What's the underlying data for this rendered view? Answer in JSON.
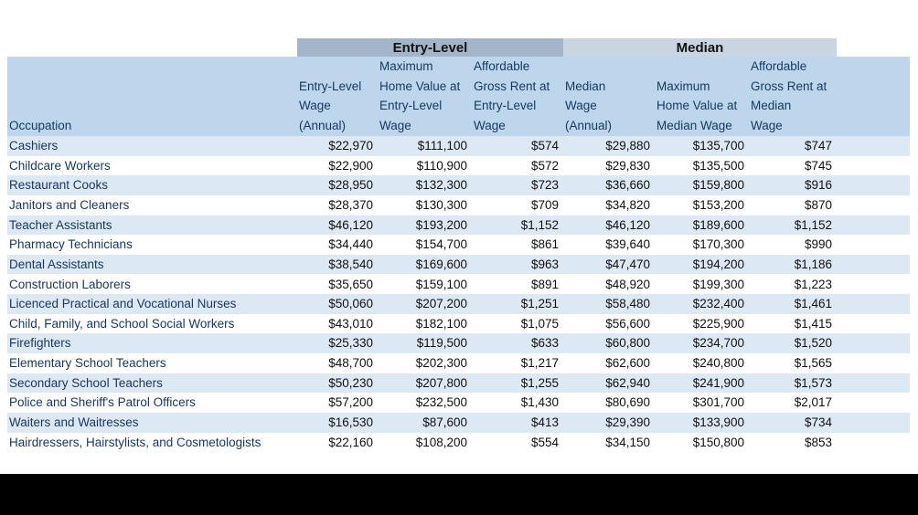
{
  "colors": {
    "entry_band": "#a3b5c9",
    "median_band": "#c9d5e1",
    "header_bg": "#bdd6ec",
    "row_alt_bg": "#dce8f4",
    "occupation_text": "#17375e",
    "value_text": "#101010",
    "footer_bar": "#000000"
  },
  "table": {
    "header_lines": [
      "Occupation",
      "Entry-Level\nWage\n(Annual)",
      "Maximum\nHome Value at\nEntry-Level\nWage",
      "Affordable\nGross Rent at\nEntry-Level\nWage",
      "Median\nWage\n(Annual)",
      "Maximum\nHome Value at\nMedian Wage",
      "Affordable\nGross Rent at\nMedian\nWage"
    ]
  },
  "chart_data": {
    "type": "table",
    "group_headers": [
      "Entry-Level",
      "Median"
    ],
    "columns": [
      "Occupation",
      "Entry-Level Wage (Annual)",
      "Maximum Home Value at Entry-Level Wage",
      "Affordable Gross Rent at Entry-Level Wage",
      "Median Wage (Annual)",
      "Maximum Home Value at Median Wage",
      "Affordable Gross Rent at Median Wage"
    ],
    "rows": [
      [
        "Cashiers",
        "$22,970",
        "$111,100",
        "$574",
        "$29,880",
        "$135,700",
        "$747"
      ],
      [
        "Childcare Workers",
        "$22,900",
        "$110,900",
        "$572",
        "$29,830",
        "$135,500",
        "$745"
      ],
      [
        "Restaurant Cooks",
        "$28,950",
        "$132,300",
        "$723",
        "$36,660",
        "$159,800",
        "$916"
      ],
      [
        "Janitors and Cleaners",
        "$28,370",
        "$130,300",
        "$709",
        "$34,820",
        "$153,200",
        "$870"
      ],
      [
        "Teacher Assistants",
        "$46,120",
        "$193,200",
        "$1,152",
        "$46,120",
        "$189,600",
        "$1,152"
      ],
      [
        "Pharmacy Technicians",
        "$34,440",
        "$154,700",
        "$861",
        "$39,640",
        "$170,300",
        "$990"
      ],
      [
        "Dental Assistants",
        "$38,540",
        "$169,600",
        "$963",
        "$47,470",
        "$194,200",
        "$1,186"
      ],
      [
        "Construction Laborers",
        "$35,650",
        "$159,100",
        "$891",
        "$48,920",
        "$199,300",
        "$1,223"
      ],
      [
        "Licenced Practical and Vocational Nurses",
        "$50,060",
        "$207,200",
        "$1,251",
        "$58,480",
        "$232,400",
        "$1,461"
      ],
      [
        "Child, Family, and School Social Workers",
        "$43,010",
        "$182,100",
        "$1,075",
        "$56,600",
        "$225,900",
        "$1,415"
      ],
      [
        "Firefighters",
        "$25,330",
        "$119,500",
        "$633",
        "$60,800",
        "$234,700",
        "$1,520"
      ],
      [
        "Elementary School Teachers",
        "$48,700",
        "$202,300",
        "$1,217",
        "$62,600",
        "$240,800",
        "$1,565"
      ],
      [
        "Secondary School Teachers",
        "$50,230",
        "$207,800",
        "$1,255",
        "$62,940",
        "$241,900",
        "$1,573"
      ],
      [
        "Police and Sheriff's Patrol Officers",
        "$57,200",
        "$232,500",
        "$1,430",
        "$80,690",
        "$301,700",
        "$2,017"
      ],
      [
        "Waiters and Waitresses",
        "$16,530",
        "$87,600",
        "$413",
        "$29,390",
        "$133,900",
        "$734"
      ],
      [
        "Hairdressers, Hairstylists, and Cosmetologists",
        "$22,160",
        "$108,200",
        "$554",
        "$34,150",
        "$150,800",
        "$853"
      ]
    ]
  }
}
